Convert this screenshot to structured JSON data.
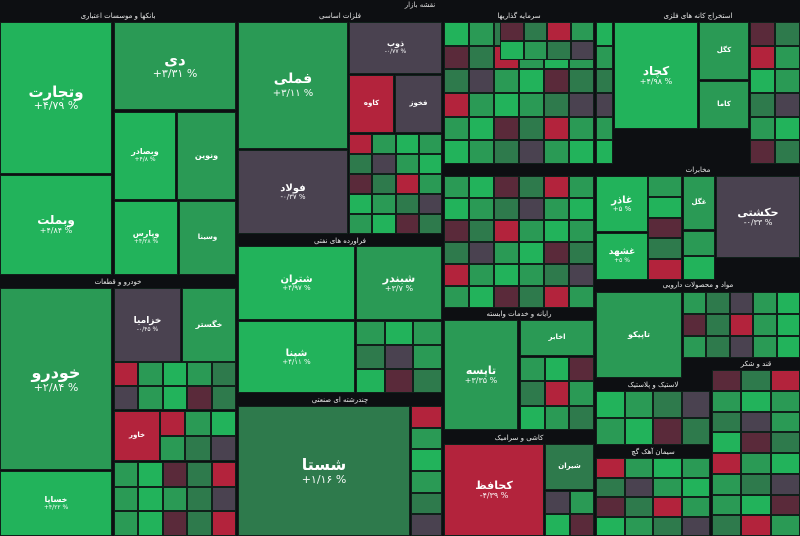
{
  "map_title": "نقشه بازار",
  "colors": {
    "up_strong": "#22b35b",
    "up": "#2a9a55",
    "up_weak": "#2e7a4c",
    "flat": "#4a4250",
    "down_weak": "#5a2a3a",
    "down": "#b3233c",
    "background": "#0d0f12"
  },
  "chart_data": {
    "type": "treemap",
    "title": "نقشه بازار",
    "sectors": [
      "بانکها و موسسات اعتباری",
      "فلزات اساسی",
      "سرمایه گذاریها",
      "استخراج کانه های فلزی",
      "خودرو و قطعات",
      "فراورده های نفتی",
      "چندرشته ای صنعتی",
      "رایانه و خدمات وابسته",
      "کاشی و سرامیک",
      "مواد و محصولات دارویی",
      "مخابرات",
      "قند و شکر",
      "لاستیک و پلاستیک",
      "سیمان آهک گچ"
    ],
    "tiles": [
      {
        "symbol": "وتجارت",
        "change": "+۴/۷۹ %",
        "value": 4.79
      },
      {
        "symbol": "وبملت",
        "change": "+۴/۸۴ %",
        "value": 4.84
      },
      {
        "symbol": "دی",
        "change": "+۳/۳۱ %",
        "value": 3.31
      },
      {
        "symbol": "وبصادر",
        "change": "+۴/۸ %",
        "value": 4.8
      },
      {
        "symbol": "ونوین",
        "change": "",
        "value": 3.5
      },
      {
        "symbol": "وپارس",
        "change": "+۴/۲۸ %",
        "value": 4.28
      },
      {
        "symbol": "وسینا",
        "change": "",
        "value": 2.5
      },
      {
        "symbol": "خودرو",
        "change": "+۲/۸۴ %",
        "value": 2.84
      },
      {
        "symbol": "خساپا",
        "change": "+۴/۲۲ %",
        "value": 4.22
      },
      {
        "symbol": "خزامیا",
        "change": "-۰/۴۵ %",
        "value": -0.45
      },
      {
        "symbol": "خگستر",
        "change": "",
        "value": 2.2
      },
      {
        "symbol": "خاور",
        "change": "",
        "value": -2.5
      },
      {
        "symbol": "فملی",
        "change": "+۳/۱۱ %",
        "value": 3.11
      },
      {
        "symbol": "فولاد",
        "change": "-۰/۳۷ %",
        "value": -0.37
      },
      {
        "symbol": "ذوب",
        "change": "-۰/۷۷ %",
        "value": -0.77
      },
      {
        "symbol": "کاوه",
        "change": "",
        "value": -2.8
      },
      {
        "symbol": "فخوز",
        "change": "",
        "value": -0.3
      },
      {
        "symbol": "شتران",
        "change": "+۴/۹۷ %",
        "value": 4.97
      },
      {
        "symbol": "شبندر",
        "change": "+۳/۷ %",
        "value": 3.7
      },
      {
        "symbol": "شپنا",
        "change": "+۴/۱۱ %",
        "value": 4.11
      },
      {
        "symbol": "شستا",
        "change": "+۱/۱۶ %",
        "value": 1.16
      },
      {
        "symbol": "کچاد",
        "change": "+۴/۹۸ %",
        "value": 4.98
      },
      {
        "symbol": "کگل",
        "change": "",
        "value": 3.6
      },
      {
        "symbol": "کاما",
        "change": "",
        "value": 3.2
      },
      {
        "symbol": "حکشتی",
        "change": "-۰/۳۳ %",
        "value": -0.33
      },
      {
        "symbol": "تاپیکو",
        "change": "",
        "value": 3.0
      },
      {
        "symbol": "غگل",
        "change": "",
        "value": 2.6
      },
      {
        "symbol": "غاذر",
        "change": "+۵ %",
        "value": 5.0
      },
      {
        "symbol": "غشهد",
        "change": "+۵ %",
        "value": 5.0
      },
      {
        "symbol": "تاپسه",
        "change": "+۳/۳۵ %",
        "value": 3.35
      },
      {
        "symbol": "کحافظ",
        "change": "-۴/۳۹ %",
        "value": -4.39
      },
      {
        "symbol": "اخابر",
        "change": "",
        "value": 2.0
      },
      {
        "symbol": "شیران",
        "change": "",
        "value": 1.5
      }
    ]
  }
}
